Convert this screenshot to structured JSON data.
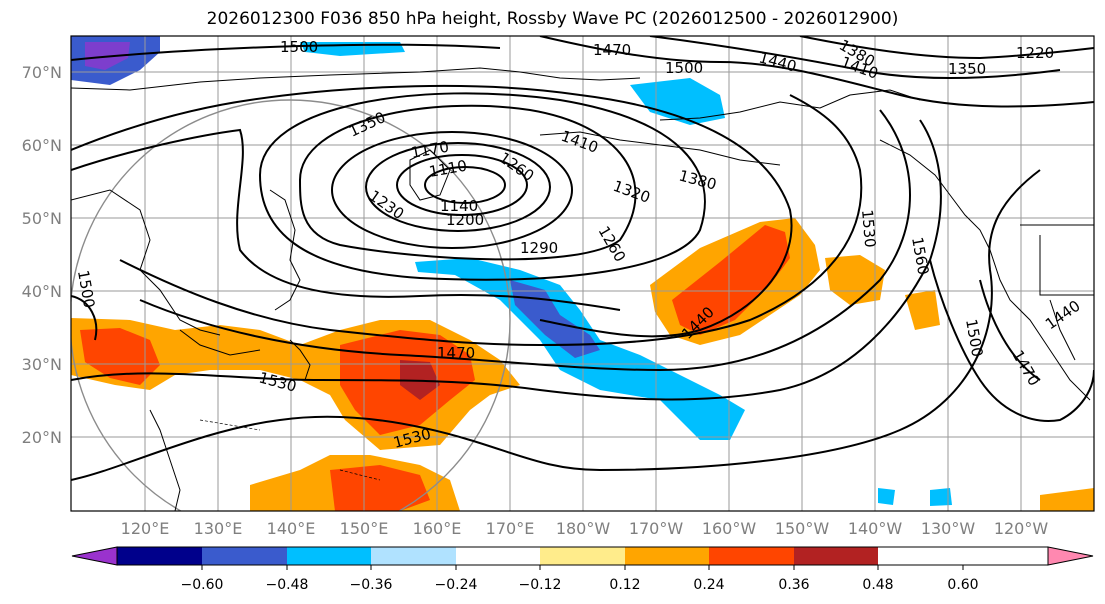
{
  "title": "2026012300 F036 850 hPa height, Rossby Wave PC (2026012500 - 2026012900)",
  "latitude_labels": [
    "70°N",
    "60°N",
    "50°N",
    "40°N",
    "30°N",
    "20°N"
  ],
  "longitude_labels": [
    "120°E",
    "130°E",
    "140°E",
    "150°E",
    "160°E",
    "170°E",
    "180°W",
    "170°W",
    "160°W",
    "150°W",
    "140°W",
    "130°W",
    "120°W"
  ],
  "contour_labels": [
    "1500",
    "1470",
    "1500",
    "1440",
    "1410",
    "1380",
    "1220",
    "1350",
    "1350",
    "1410",
    "1170",
    "1110",
    "1260",
    "1320",
    "1380",
    "1230",
    "1140",
    "1200",
    "1290",
    "1260",
    "1530",
    "1560",
    "1500",
    "1440",
    "1470",
    "1530",
    "1530",
    "1500",
    "1470",
    "1440"
  ],
  "colorbar": {
    "ticks": [
      "−0.60",
      "−0.48",
      "−0.36",
      "−0.24",
      "−0.12",
      "0.12",
      "0.24",
      "0.36",
      "0.48",
      "0.60"
    ],
    "colors": [
      "#9a32cd",
      "#00008b",
      "#3a5bcd",
      "#00bfff",
      "#b0e2ff",
      "#ffffff",
      "#ffec8b",
      "#ffa500",
      "#ff4500",
      "#b22222",
      "#ff88b0"
    ]
  },
  "colors": {
    "contour": "#000000",
    "coastline": "#000000",
    "grid": "#9a9a9a",
    "axis_label": "#7f7f7f"
  }
}
